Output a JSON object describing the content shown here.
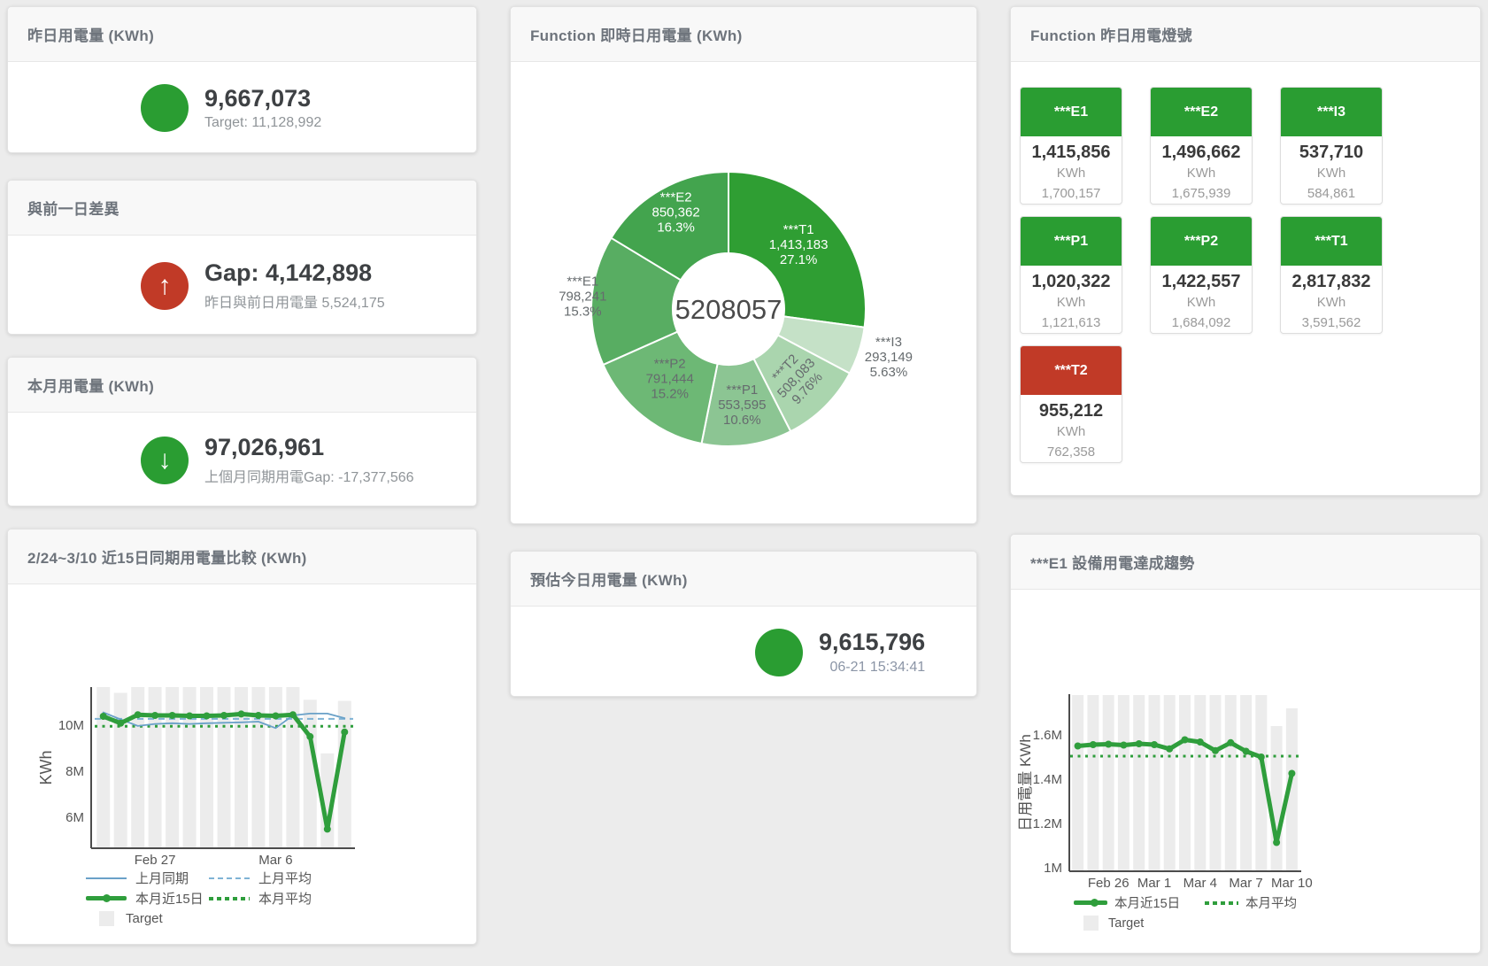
{
  "page": {
    "background": "#ececec"
  },
  "colors": {
    "green": "#2a9d32",
    "red": "#c13a27",
    "chart_green": "#2f9e3c",
    "chart_blue": "#6aa1c8",
    "target_gray": "#ececec"
  },
  "cards": {
    "yesterday": {
      "title": "昨日用電量 (KWh)",
      "value": "9,667,073",
      "subtitle": "Target: 11,128,992",
      "status_color": "#2a9d32"
    },
    "day_gap": {
      "title": "與前一日差異",
      "value": "Gap: 4,142,898",
      "subtitle": "昨日與前日用電量 5,524,175",
      "status_color": "#c13a27",
      "arrow": "↑"
    },
    "month": {
      "title": "本月用電量 (KWh)",
      "value": "97,026,961",
      "subtitle": "上個月同期用電Gap: -17,377,566",
      "status_color": "#2a9d32",
      "arrow": "↓"
    },
    "estimate": {
      "title": "預估今日用電量 (KWh)",
      "value": "9,615,796",
      "subtitle": "06-21 15:34:41",
      "status_color": "#2a9d32"
    },
    "realtime_donut": {
      "title": "Function 即時日用電量 (KWh)",
      "center_total": "5208057",
      "chart_data": {
        "type": "pie",
        "segments": [
          {
            "name": "***T1",
            "value": 1413183,
            "value_label": "1,413,183",
            "pct_label": "27.1%",
            "color": "#2f9e33",
            "label_color": "#ffffff"
          },
          {
            "name": "***I3",
            "value": 293149,
            "value_label": "293,149",
            "pct_label": "5.63%",
            "color": "#c5e1c7",
            "label_color": "#666b6e",
            "label_outside": true
          },
          {
            "name": "***T2",
            "value": 508083,
            "value_label": "508,083",
            "pct_label": "9.76%",
            "color": "#aad5ae",
            "label_color": "#666b6e",
            "label_rotate": -47
          },
          {
            "name": "***P1",
            "value": 553595,
            "value_label": "553,595",
            "pct_label": "10.6%",
            "color": "#8cc593",
            "label_color": "#666b6e"
          },
          {
            "name": "***P2",
            "value": 791444,
            "value_label": "791,444",
            "pct_label": "15.2%",
            "color": "#6db875",
            "label_color": "#666b6e"
          },
          {
            "name": "***E1",
            "value": 798241,
            "value_label": "798,241",
            "pct_label": "15.3%",
            "color": "#58ad62",
            "label_color": "#666b6e"
          },
          {
            "name": "***E2",
            "value": 850362,
            "value_label": "850,362",
            "pct_label": "16.3%",
            "color": "#43a44e",
            "label_color": "#ffffff"
          }
        ]
      }
    },
    "lights": {
      "title": "Function 昨日用電燈號",
      "unit": "KWh",
      "status_colors": {
        "green": "#2a9d32",
        "red": "#c13a27"
      },
      "tiles": [
        {
          "name": "***E1",
          "value": "1,415,856",
          "target": "1,700,157",
          "status": "green"
        },
        {
          "name": "***E2",
          "value": "1,496,662",
          "target": "1,675,939",
          "status": "green"
        },
        {
          "name": "***I3",
          "value": "537,710",
          "target": "584,861",
          "status": "green"
        },
        {
          "name": "***P1",
          "value": "1,020,322",
          "target": "1,121,613",
          "status": "green"
        },
        {
          "name": "***P2",
          "value": "1,422,557",
          "target": "1,684,092",
          "status": "green"
        },
        {
          "name": "***T1",
          "value": "2,817,832",
          "target": "3,591,562",
          "status": "green"
        },
        {
          "name": "***T2",
          "value": "955,212",
          "target": "762,358",
          "status": "red"
        }
      ]
    },
    "compare15": {
      "title": "2/24~3/10 近15日同期用電量比較 (KWh)",
      "chart_data": {
        "type": "line",
        "ylabel": "KWh",
        "ylim": [
          4.65,
          11.65
        ],
        "unit": "M KWh",
        "yticks": [
          {
            "v": 6,
            "label": "6M"
          },
          {
            "v": 8,
            "label": "8M"
          },
          {
            "v": 10,
            "label": "10M"
          }
        ],
        "xticks": [
          {
            "i": 3,
            "label": "Feb 27"
          },
          {
            "i": 10,
            "label": "Mar 6"
          }
        ],
        "target": {
          "name": "Target",
          "color": "#ececec",
          "values": [
            11.65,
            11.4,
            11.65,
            11.65,
            11.65,
            11.65,
            11.65,
            11.65,
            11.65,
            11.65,
            11.65,
            11.65,
            11.1,
            8.77,
            11.05
          ]
        },
        "series": [
          {
            "name": "上月同期",
            "color": "#6aa1c8",
            "width": 1.8,
            "style": "solid",
            "values": [
              10.55,
              10.25,
              9.96,
              10.05,
              10.08,
              10.05,
              10.08,
              10.1,
              10.12,
              10.15,
              9.87,
              10.42,
              10.5,
              10.5,
              10.3
            ]
          },
          {
            "name": "上月平均",
            "color": "#7fb3d5",
            "width": 2,
            "style": "dashed",
            "avg": 10.27
          },
          {
            "name": "本月近15日",
            "color": "#2f9e3c",
            "width": 5,
            "style": "solid",
            "markers": true,
            "values": [
              10.38,
              10.08,
              10.45,
              10.42,
              10.42,
              10.4,
              10.4,
              10.42,
              10.48,
              10.42,
              10.4,
              10.45,
              9.5,
              5.48,
              9.7
            ]
          },
          {
            "name": "本月平均",
            "color": "#2f9e3c",
            "width": 3,
            "style": "dotted",
            "avg": 9.95
          }
        ]
      }
    },
    "e1_trend": {
      "title": "***E1 設備用電達成趨勢",
      "chart_data": {
        "type": "line",
        "ylabel": "日用電量 KWh",
        "ylim": [
          0.984,
          1.784
        ],
        "unit": "M KWh",
        "yticks": [
          {
            "v": 1,
            "label": "1M"
          },
          {
            "v": 1.2,
            "label": "1.2M"
          },
          {
            "v": 1.4,
            "label": "1.4M"
          },
          {
            "v": 1.6,
            "label": "1.6M"
          }
        ],
        "xticks": [
          {
            "i": 2,
            "label": "Feb 26"
          },
          {
            "i": 5,
            "label": "Mar 1"
          },
          {
            "i": 8,
            "label": "Mar 4"
          },
          {
            "i": 11,
            "label": "Mar 7"
          },
          {
            "i": 14,
            "label": "Mar 10"
          }
        ],
        "target": {
          "name": "Target",
          "color": "#ececec",
          "values": [
            1.78,
            1.78,
            1.78,
            1.78,
            1.78,
            1.78,
            1.78,
            1.78,
            1.78,
            1.78,
            1.78,
            1.78,
            1.78,
            1.64,
            1.72
          ]
        },
        "series": [
          {
            "name": "本月近15日",
            "color": "#2f9e3c",
            "width": 5,
            "style": "solid",
            "markers": true,
            "values": [
              1.55,
              1.556,
              1.558,
              1.554,
              1.56,
              1.556,
              1.537,
              1.578,
              1.568,
              1.529,
              1.565,
              1.526,
              1.5,
              1.114,
              1.426
            ]
          },
          {
            "name": "本月平均",
            "color": "#2f9e3c",
            "width": 3,
            "style": "dotted",
            "avg": 1.504
          }
        ]
      }
    }
  }
}
